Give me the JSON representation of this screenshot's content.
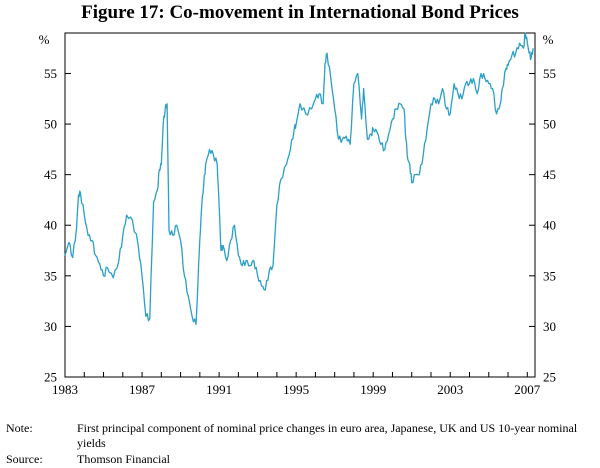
{
  "figure_title": "Figure 17: Co-movement in International Bond Prices",
  "note_label": "Note:",
  "note_text": "First principal component of nominal price changes in euro area, Japanese, UK and US 10-year nominal yields",
  "source_label": "Source:",
  "source_text": "Thomson Financial",
  "line_color": "#2a9fc7",
  "chart_data": {
    "type": "line",
    "title": "Figure 17: Co-movement in International Bond Prices",
    "xlabel": "",
    "ylabel": "%",
    "ylabel_right": "%",
    "xlim": [
      1983,
      2007.4
    ],
    "ylim": [
      25,
      59
    ],
    "x_tick_labels": [
      "1983",
      "1987",
      "1991",
      "1995",
      "1999",
      "2003",
      "2007"
    ],
    "x_ticks": [
      1983,
      1987,
      1991,
      1995,
      1999,
      2003,
      2007
    ],
    "y_ticks": [
      25,
      30,
      35,
      40,
      45,
      50,
      55
    ],
    "y_tick_labels": [
      "25",
      "30",
      "35",
      "40",
      "45",
      "50",
      "55"
    ],
    "grid": false,
    "series": [
      {
        "name": "Co-movement",
        "x": [
          1983.0,
          1983.2,
          1983.4,
          1983.6,
          1983.7,
          1983.8,
          1984.0,
          1984.2,
          1984.4,
          1984.6,
          1984.8,
          1985.0,
          1985.2,
          1985.5,
          1985.8,
          1986.0,
          1986.2,
          1986.5,
          1986.8,
          1987.0,
          1987.2,
          1987.4,
          1987.6,
          1987.8,
          1987.9,
          1988.0,
          1988.1,
          1988.2,
          1988.3,
          1988.4,
          1988.6,
          1988.8,
          1989.0,
          1989.2,
          1989.4,
          1989.6,
          1989.8,
          1990.0,
          1990.1,
          1990.2,
          1990.3,
          1990.5,
          1990.7,
          1990.9,
          1991.0,
          1991.1,
          1991.2,
          1991.4,
          1991.6,
          1991.8,
          1992.0,
          1992.2,
          1992.4,
          1992.6,
          1992.8,
          1993.0,
          1993.2,
          1993.4,
          1993.6,
          1993.8,
          1994.0,
          1994.2,
          1994.5,
          1994.7,
          1994.9,
          1995.0,
          1995.2,
          1995.5,
          1995.8,
          1996.0,
          1996.2,
          1996.4,
          1996.5,
          1996.6,
          1996.8,
          1997.0,
          1997.2,
          1997.4,
          1997.6,
          1997.8,
          1998.0,
          1998.2,
          1998.4,
          1998.5,
          1998.7,
          1998.9,
          1999.0,
          1999.2,
          1999.4,
          1999.6,
          1999.8,
          2000.0,
          2000.2,
          2000.4,
          2000.6,
          2000.7,
          2000.8,
          2000.9,
          2001.0,
          2001.2,
          2001.4,
          2001.6,
          2001.8,
          2002.0,
          2002.2,
          2002.4,
          2002.6,
          2002.8,
          2003.0,
          2003.2,
          2003.4,
          2003.6,
          2003.8,
          2004.0,
          2004.2,
          2004.4,
          2004.6,
          2004.8,
          2005.0,
          2005.2,
          2005.4,
          2005.6,
          2005.7,
          2005.9,
          2006.0,
          2006.2,
          2006.4,
          2006.6,
          2006.8,
          2006.9,
          2007.0,
          2007.1,
          2007.2,
          2007.3
        ],
        "values": [
          37.0,
          38.3,
          36.8,
          39.8,
          43.0,
          43.2,
          41.0,
          39.0,
          38.5,
          37.0,
          36.2,
          35.0,
          35.8,
          34.8,
          36.5,
          39.0,
          41.0,
          40.5,
          38.0,
          35.0,
          31.0,
          30.8,
          42.3,
          43.5,
          45.5,
          46.0,
          50.0,
          51.5,
          52.0,
          39.5,
          39.0,
          40.0,
          38.5,
          35.0,
          33.0,
          31.0,
          30.2,
          38.5,
          42.0,
          44.0,
          46.0,
          47.5,
          47.0,
          46.0,
          42.0,
          37.5,
          38.0,
          36.5,
          38.5,
          40.0,
          37.0,
          36.0,
          36.5,
          36.0,
          36.5,
          35.0,
          34.0,
          33.6,
          35.5,
          36.0,
          42.0,
          44.5,
          46.0,
          47.5,
          49.5,
          50.0,
          52.0,
          51.0,
          51.5,
          52.5,
          53.0,
          52.0,
          56.0,
          57.0,
          54.5,
          51.5,
          48.5,
          48.5,
          48.8,
          48.0,
          54.0,
          55.0,
          50.5,
          53.5,
          48.5,
          49.0,
          49.5,
          49.2,
          48.0,
          47.5,
          49.0,
          50.5,
          51.5,
          52.0,
          51.5,
          48.5,
          46.5,
          46.0,
          44.2,
          45.0,
          45.0,
          47.0,
          49.5,
          52.0,
          52.5,
          52.0,
          53.5,
          51.5,
          51.0,
          54.0,
          53.0,
          52.5,
          54.0,
          54.0,
          54.5,
          53.0,
          55.0,
          54.5,
          54.0,
          53.5,
          51.0,
          52.0,
          53.5,
          55.5,
          55.8,
          56.8,
          57.0,
          58.0,
          57.5,
          59.0,
          58.0,
          57.0,
          56.5,
          57.5
        ]
      }
    ]
  }
}
